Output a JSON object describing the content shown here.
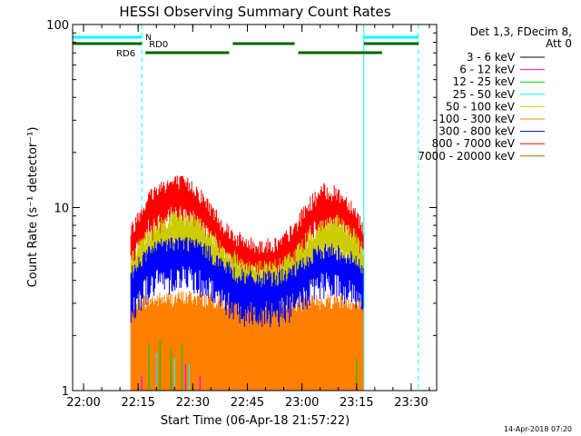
{
  "chart_data": {
    "type": "line",
    "title": "HESSI Observing Summary Count Rates",
    "xlabel": "Start Time (06-Apr-18 21:57:22)",
    "ylabel": "Count Rate (s⁻¹ detector⁻¹)",
    "y_scale": "log",
    "ylim": [
      1,
      100
    ],
    "xlim": [
      "21:57",
      "23:37"
    ],
    "x_ticks": [
      "22:00",
      "22:15",
      "22:30",
      "22:45",
      "23:00",
      "23:15",
      "23:30"
    ],
    "y_ticks": [
      "1",
      "10",
      "100"
    ],
    "grid": false,
    "legend_position": "top-right-outside",
    "legend_header": [
      "Det 1,3, FDecim 8,",
      "Att 0"
    ],
    "series": [
      {
        "name": "3 - 6 keV",
        "color": "#000000",
        "x": [],
        "y": []
      },
      {
        "name": "6 - 12 keV",
        "color": "#ff00ff",
        "x": [
          "22:16",
          "22:20",
          "22:24",
          "22:28",
          "22:32"
        ],
        "y": [
          1.2,
          1.5,
          1.3,
          1.4,
          1.2
        ]
      },
      {
        "name": "12 - 25 keV",
        "color": "#00cc00",
        "x": [
          "22:18",
          "22:21",
          "22:24",
          "22:27",
          "23:15"
        ],
        "y": [
          1.8,
          1.9,
          1.7,
          1.8,
          1.5
        ]
      },
      {
        "name": "25 - 50 keV",
        "color": "#00ffff",
        "x": [
          "22:20",
          "22:25",
          "22:29"
        ],
        "y": [
          1.6,
          1.5,
          1.4
        ]
      },
      {
        "name": "50 - 100 keV",
        "color": "#cccc00",
        "x": [
          "22:13",
          "22:18",
          "22:22",
          "22:26",
          "22:30",
          "22:34",
          "22:38",
          "22:42",
          "22:46",
          "22:50",
          "22:54",
          "22:58",
          "23:02",
          "23:06",
          "23:10",
          "23:14",
          "23:17"
        ],
        "y": [
          5.0,
          6.8,
          8.0,
          8.6,
          8.2,
          7.0,
          5.8,
          5.0,
          4.5,
          4.5,
          4.6,
          5.3,
          6.6,
          7.8,
          7.9,
          6.8,
          5.5
        ]
      },
      {
        "name": "100 - 300 keV",
        "color": "#ff7f00",
        "x": [
          "22:13",
          "22:20",
          "22:30",
          "22:40",
          "22:50",
          "23:00",
          "23:10",
          "23:17"
        ],
        "y": [
          2.9,
          3.0,
          3.1,
          2.9,
          2.8,
          2.9,
          3.0,
          2.9
        ]
      },
      {
        "name": "300 - 800 keV",
        "color": "#0000ff",
        "x": [
          "22:13",
          "22:18",
          "22:22",
          "22:26",
          "22:30",
          "22:34",
          "22:38",
          "22:42",
          "22:46",
          "22:50",
          "22:54",
          "22:58",
          "23:02",
          "23:06",
          "23:10",
          "23:14",
          "23:17"
        ],
        "y": [
          4.2,
          5.5,
          6.0,
          6.2,
          6.1,
          5.5,
          4.7,
          4.1,
          3.9,
          3.9,
          4.0,
          4.3,
          5.0,
          5.6,
          5.5,
          5.0,
          4.3
        ]
      },
      {
        "name": "800 - 7000 keV",
        "color": "#ff0000",
        "x": [
          "22:13",
          "22:18",
          "22:22",
          "22:26",
          "22:30",
          "22:34",
          "22:38",
          "22:42",
          "22:46",
          "22:50",
          "22:54",
          "22:58",
          "23:02",
          "23:06",
          "23:10",
          "23:14",
          "23:17"
        ],
        "y": [
          7.0,
          11.0,
          12.8,
          13.2,
          12.5,
          10.0,
          7.8,
          6.5,
          6.0,
          5.9,
          6.1,
          7.3,
          10.0,
          11.8,
          11.4,
          9.6,
          7.2
        ]
      },
      {
        "name": "7000 - 20000 keV",
        "color": "#808000",
        "x": [],
        "y": []
      }
    ],
    "state_bars": [
      {
        "name": "",
        "color": "#00ffff",
        "label": "N",
        "segments": [
          [
            "21:57",
            "22:16"
          ],
          [
            "23:17",
            "23:32"
          ]
        ]
      },
      {
        "name": "",
        "color": "#006400",
        "label": "RD0",
        "segments": [
          [
            "21:57",
            "22:16"
          ],
          [
            "22:41",
            "22:58"
          ],
          [
            "23:17",
            "23:32"
          ]
        ]
      },
      {
        "name": "",
        "color": "#006400",
        "label": "RD6",
        "segments": [
          [
            "22:17",
            "22:40"
          ],
          [
            "22:59",
            "23:22"
          ]
        ]
      }
    ],
    "markers": [
      {
        "type": "vline",
        "color": "#00ffff",
        "style": "solid",
        "x": [
          "21:57",
          "23:17"
        ]
      },
      {
        "type": "vline",
        "color": "#00ffff",
        "style": "dashed",
        "x": [
          "22:16",
          "23:32"
        ]
      }
    ]
  },
  "footer_date": "14-Apr-2018 07:20"
}
